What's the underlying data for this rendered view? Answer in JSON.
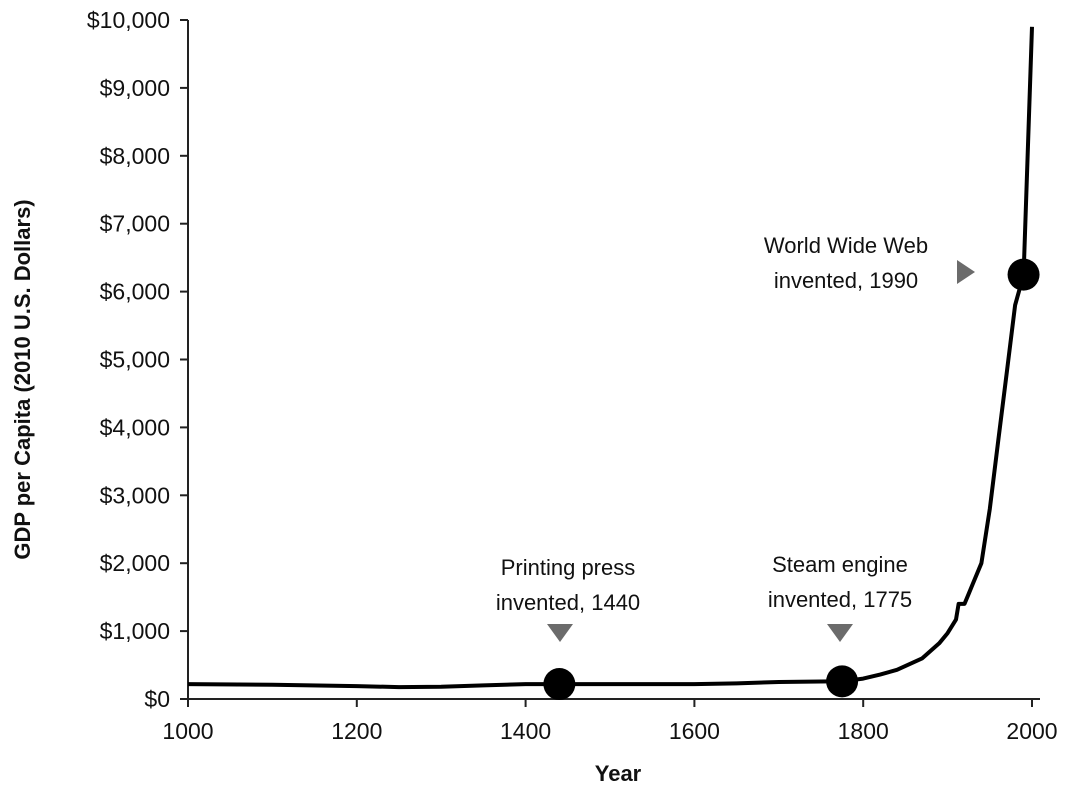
{
  "chart_data": {
    "type": "line",
    "xlabel": "Year",
    "ylabel": "GDP per Capita (2010 U.S. Dollars)",
    "xlim": [
      1000,
      2000
    ],
    "ylim": [
      0,
      10000
    ],
    "x_ticks": [
      1000,
      1200,
      1400,
      1600,
      1800,
      2000
    ],
    "y_ticks": [
      0,
      1000,
      2000,
      3000,
      4000,
      5000,
      6000,
      7000,
      8000,
      9000,
      10000
    ],
    "y_tick_labels": [
      "$0",
      "$1,000",
      "$2,000",
      "$3,000",
      "$4,000",
      "$5,000",
      "$6,000",
      "$7,000",
      "$8,000",
      "$9,000",
      "$10,000"
    ],
    "grid": false,
    "series": [
      {
        "x": [
          1000,
          1100,
          1200,
          1250,
          1300,
          1350,
          1400,
          1440,
          1500,
          1600,
          1650,
          1700,
          1775,
          1800,
          1820,
          1840,
          1870,
          1890,
          1900,
          1910,
          1913,
          1920,
          1925,
          1930,
          1940,
          1950,
          1960,
          1970,
          1980,
          1990,
          2000
        ],
        "y": [
          220,
          210,
          190,
          175,
          180,
          200,
          220,
          220,
          220,
          220,
          230,
          250,
          260,
          300,
          360,
          430,
          600,
          820,
          970,
          1170,
          1400,
          1400,
          1550,
          1700,
          2000,
          2800,
          3800,
          4800,
          5800,
          6250,
          9900
        ]
      }
    ],
    "markers": [
      {
        "x": 1440,
        "y": 220
      },
      {
        "x": 1775,
        "y": 260
      },
      {
        "x": 1990,
        "y": 6250
      }
    ],
    "annotations": [
      {
        "lines": [
          "Printing press",
          "invented, 1440"
        ],
        "pointer": "down"
      },
      {
        "lines": [
          "Steam engine",
          "invented, 1775"
        ],
        "pointer": "down"
      },
      {
        "lines": [
          "World Wide Web",
          "invented, 1990"
        ],
        "pointer": "right"
      }
    ]
  }
}
